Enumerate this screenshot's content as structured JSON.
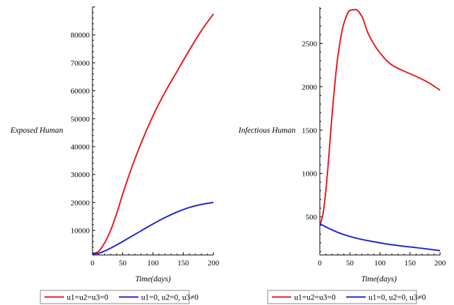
{
  "chart_data": [
    {
      "type": "line",
      "xlabel": "Time(days)",
      "ylabel": "Exposed Human",
      "xlim": [
        0,
        200
      ],
      "ylim": [
        1200,
        90000
      ],
      "xticks": [
        0,
        50,
        100,
        150,
        200
      ],
      "yticks": [
        10000,
        20000,
        30000,
        40000,
        50000,
        60000,
        70000,
        80000
      ],
      "grid": false,
      "legend_position": "bottom",
      "series": [
        {
          "name": "u1=u2=u3=0",
          "color": "#e8191e",
          "x": [
            0,
            10,
            20,
            30,
            40,
            50,
            60,
            70,
            80,
            100,
            120,
            140,
            160,
            180,
            200
          ],
          "y": [
            1500,
            2500,
            5500,
            10000,
            16000,
            23000,
            29500,
            35500,
            41000,
            51000,
            59500,
            67000,
            74500,
            81500,
            87500
          ]
        },
        {
          "name": "u1=0, u2=0, u3≠0",
          "color": "#1f23d6",
          "x": [
            0,
            10,
            20,
            40,
            60,
            80,
            100,
            120,
            140,
            160,
            180,
            200
          ],
          "y": [
            1500,
            1800,
            2600,
            4800,
            7300,
            9800,
            12300,
            14600,
            16600,
            18200,
            19300,
            20000
          ]
        }
      ]
    },
    {
      "type": "line",
      "xlabel": "Time(days)",
      "ylabel": "Infectious Human",
      "xlim": [
        0,
        200
      ],
      "ylim": [
        60,
        2920
      ],
      "xticks": [
        0,
        50,
        100,
        150,
        200
      ],
      "yticks": [
        500,
        1000,
        1500,
        2000,
        2500
      ],
      "grid": false,
      "legend_position": "bottom",
      "series": [
        {
          "name": "u1=u2=u3=0",
          "color": "#e8191e",
          "x": [
            0,
            5,
            10,
            15,
            20,
            30,
            40,
            50,
            60,
            70,
            80,
            100,
            120,
            140,
            160,
            180,
            200
          ],
          "y": [
            400,
            520,
            800,
            1200,
            1650,
            2350,
            2730,
            2880,
            2890,
            2810,
            2620,
            2390,
            2250,
            2180,
            2120,
            2050,
            1960
          ]
        },
        {
          "name": "u1=0, u2=0, u3≠0",
          "color": "#1f23d6",
          "x": [
            0,
            20,
            40,
            60,
            80,
            100,
            120,
            140,
            160,
            180,
            200
          ],
          "y": [
            420,
            350,
            295,
            255,
            225,
            200,
            178,
            160,
            145,
            128,
            110
          ]
        }
      ]
    }
  ]
}
